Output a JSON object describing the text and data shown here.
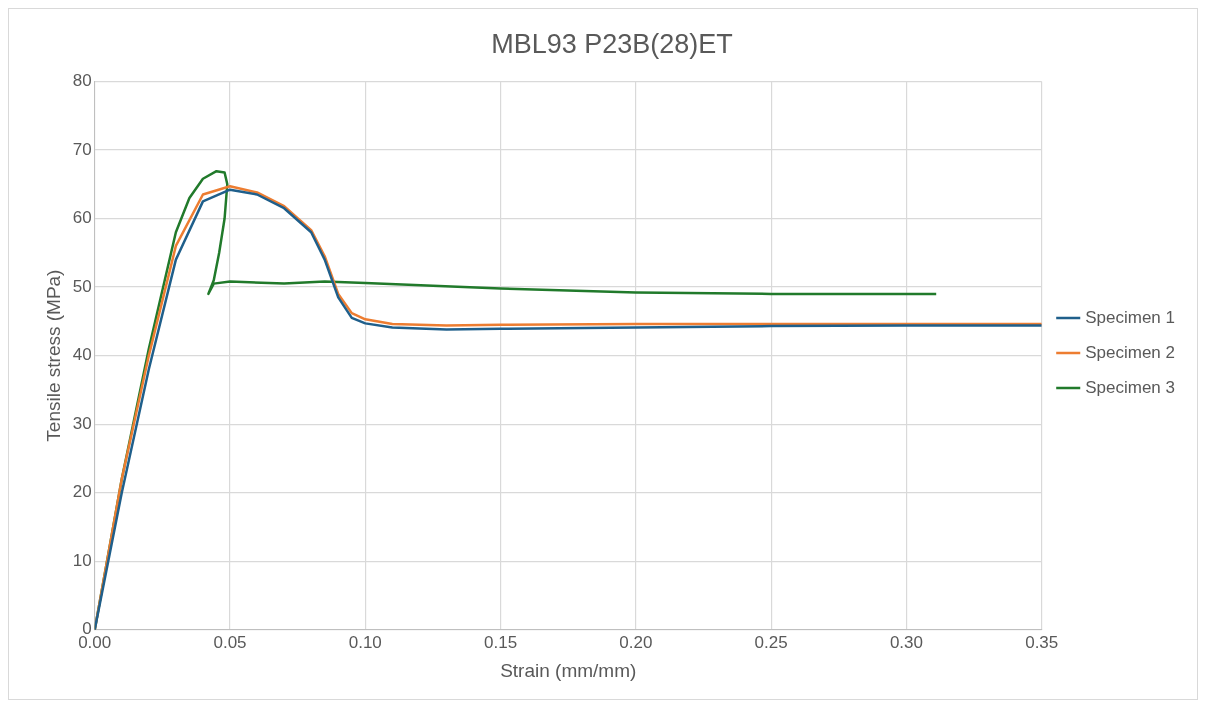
{
  "chart_data": {
    "type": "line",
    "title": "MBL93 P23B(28)ET",
    "xlabel": "Strain (mm/mm)",
    "ylabel": "Tensile stress (MPa)",
    "xlim": [
      0,
      0.35
    ],
    "xticks": [
      {
        "value": 0,
        "label": "0.00"
      },
      {
        "value": 0.05,
        "label": "0.05"
      },
      {
        "value": 0.1,
        "label": "0.10"
      },
      {
        "value": 0.15,
        "label": "0.15"
      },
      {
        "value": 0.2,
        "label": "0.20"
      },
      {
        "value": 0.25,
        "label": "0.25"
      },
      {
        "value": 0.3,
        "label": "0.30"
      },
      {
        "value": 0.35,
        "label": "0.35"
      }
    ],
    "ylim": [
      0,
      80
    ],
    "yticks": [
      0,
      10,
      20,
      30,
      40,
      50,
      60,
      70,
      80
    ],
    "grid": true,
    "legend": "right",
    "marker": "none",
    "line_style": "solid",
    "series": [
      {
        "name": "Specimen 1",
        "color": "#1f5f8b",
        "x": [
          0,
          0.01,
          0.02,
          0.03,
          0.04,
          0.05,
          0.06,
          0.07,
          0.08,
          0.085,
          0.09,
          0.095,
          0.1,
          0.11,
          0.13,
          0.15,
          0.2,
          0.25,
          0.3,
          0.35
        ],
        "values": [
          0,
          20,
          38,
          54,
          62.5,
          64.2,
          63.5,
          61.5,
          58,
          54,
          48.5,
          45.5,
          44.7,
          44.1,
          43.8,
          43.9,
          44.1,
          44.3,
          44.4,
          44.4
        ]
      },
      {
        "name": "Specimen 2",
        "color": "#ed7d31",
        "x": [
          0,
          0.01,
          0.02,
          0.03,
          0.04,
          0.05,
          0.06,
          0.07,
          0.08,
          0.085,
          0.09,
          0.095,
          0.1,
          0.11,
          0.13,
          0.15,
          0.2,
          0.25,
          0.3,
          0.35
        ],
        "values": [
          0,
          22,
          40,
          56,
          63.5,
          64.7,
          63.8,
          61.8,
          58.3,
          54.5,
          49,
          46.2,
          45.3,
          44.6,
          44.4,
          44.5,
          44.6,
          44.6,
          44.6,
          44.6
        ]
      },
      {
        "name": "Specimen 3",
        "color": "#217a2b",
        "x": [
          0,
          0.01,
          0.02,
          0.03,
          0.035,
          0.04,
          0.045,
          0.048,
          0.049,
          0.048,
          0.046,
          0.044,
          0.042,
          0.044,
          0.05,
          0.07,
          0.085,
          0.1,
          0.15,
          0.2,
          0.25,
          0.311
        ],
        "values": [
          0,
          22,
          41,
          58,
          63,
          65.8,
          66.9,
          66.7,
          65,
          60,
          55,
          51,
          49,
          50.5,
          50.8,
          50.5,
          50.8,
          50.6,
          49.8,
          49.2,
          49,
          49
        ]
      }
    ]
  }
}
